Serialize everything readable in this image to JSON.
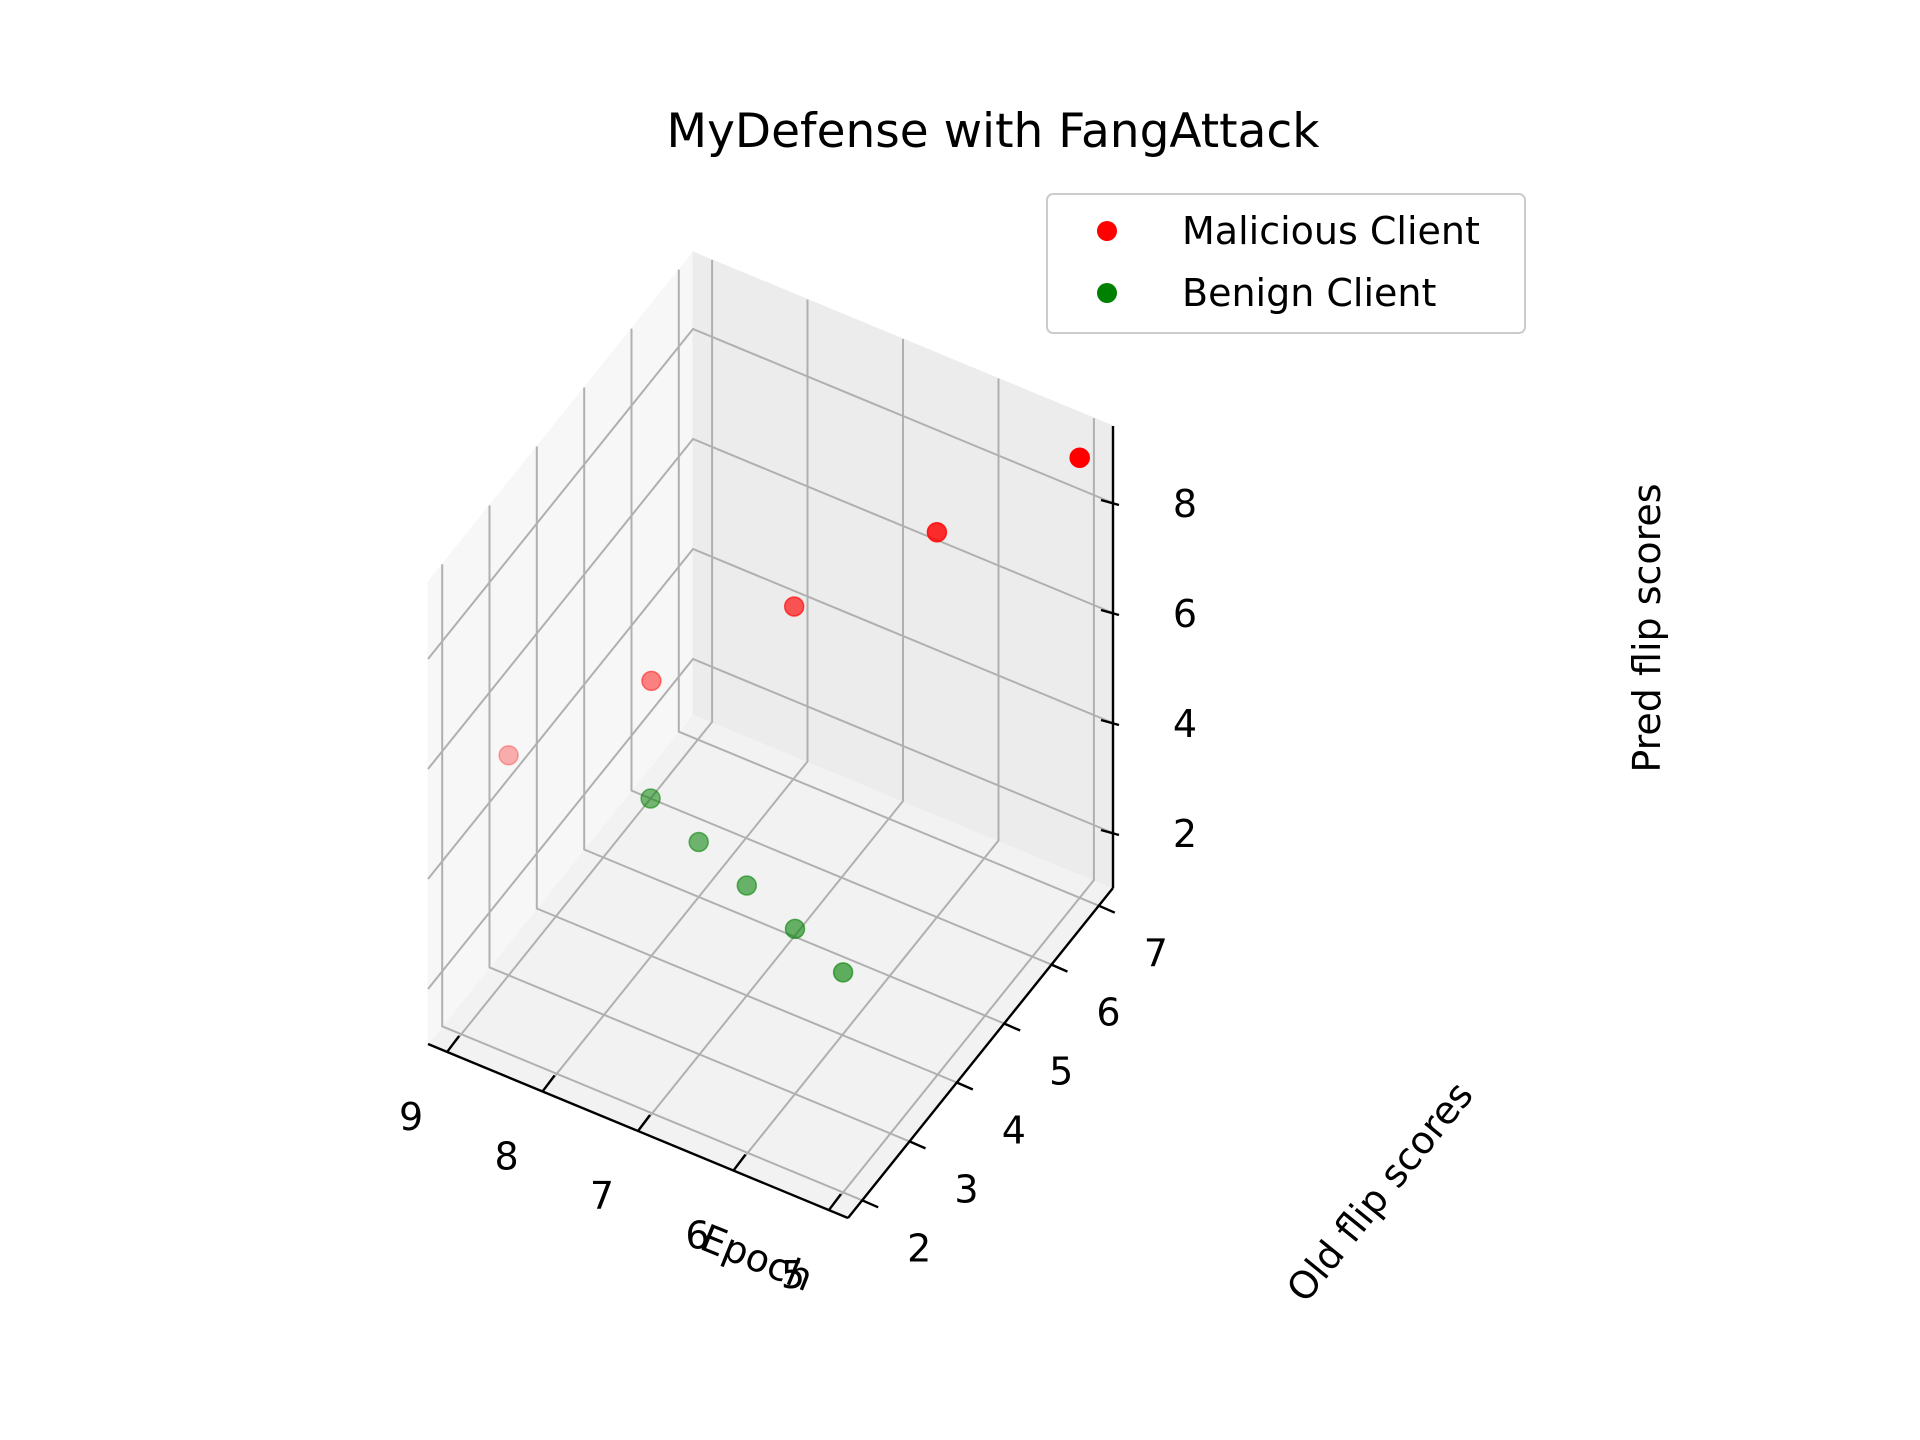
{
  "chart_data": {
    "type": "scatter",
    "title": "MyDefense with FangAttack",
    "xlabel": "Epoch",
    "ylabel": "Old flip scores",
    "zlabel": "Pred flip scores",
    "xlim": [
      4.8,
      9.2
    ],
    "ylim": [
      1.7,
      7.3
    ],
    "zlim": [
      1.0,
      9.4
    ],
    "x_ticks": [
      "5",
      "6",
      "7",
      "8",
      "9"
    ],
    "y_ticks": [
      "2",
      "3",
      "4",
      "5",
      "6",
      "7"
    ],
    "z_ticks": [
      "2",
      "4",
      "6",
      "8"
    ],
    "legend_position": "top-right",
    "grid": true,
    "series": [
      {
        "name": "Malicious Client",
        "color": "#ff0000",
        "points": [
          {
            "x": 5,
            "y": 7,
            "z": 9
          },
          {
            "x": 6,
            "y": 6,
            "z": 8
          },
          {
            "x": 7,
            "y": 5,
            "z": 7
          },
          {
            "x": 8,
            "y": 4,
            "z": 6
          },
          {
            "x": 9,
            "y": 3,
            "z": 5
          }
        ]
      },
      {
        "name": "Benign Client",
        "color": "#008000",
        "points": [
          {
            "x": 5,
            "y": 2,
            "z": 5
          },
          {
            "x": 6,
            "y": 3,
            "z": 4
          },
          {
            "x": 7,
            "y": 4,
            "z": 3
          },
          {
            "x": 8,
            "y": 5,
            "z": 2
          },
          {
            "x": 9,
            "y": 6,
            "z": 1
          }
        ]
      }
    ]
  }
}
